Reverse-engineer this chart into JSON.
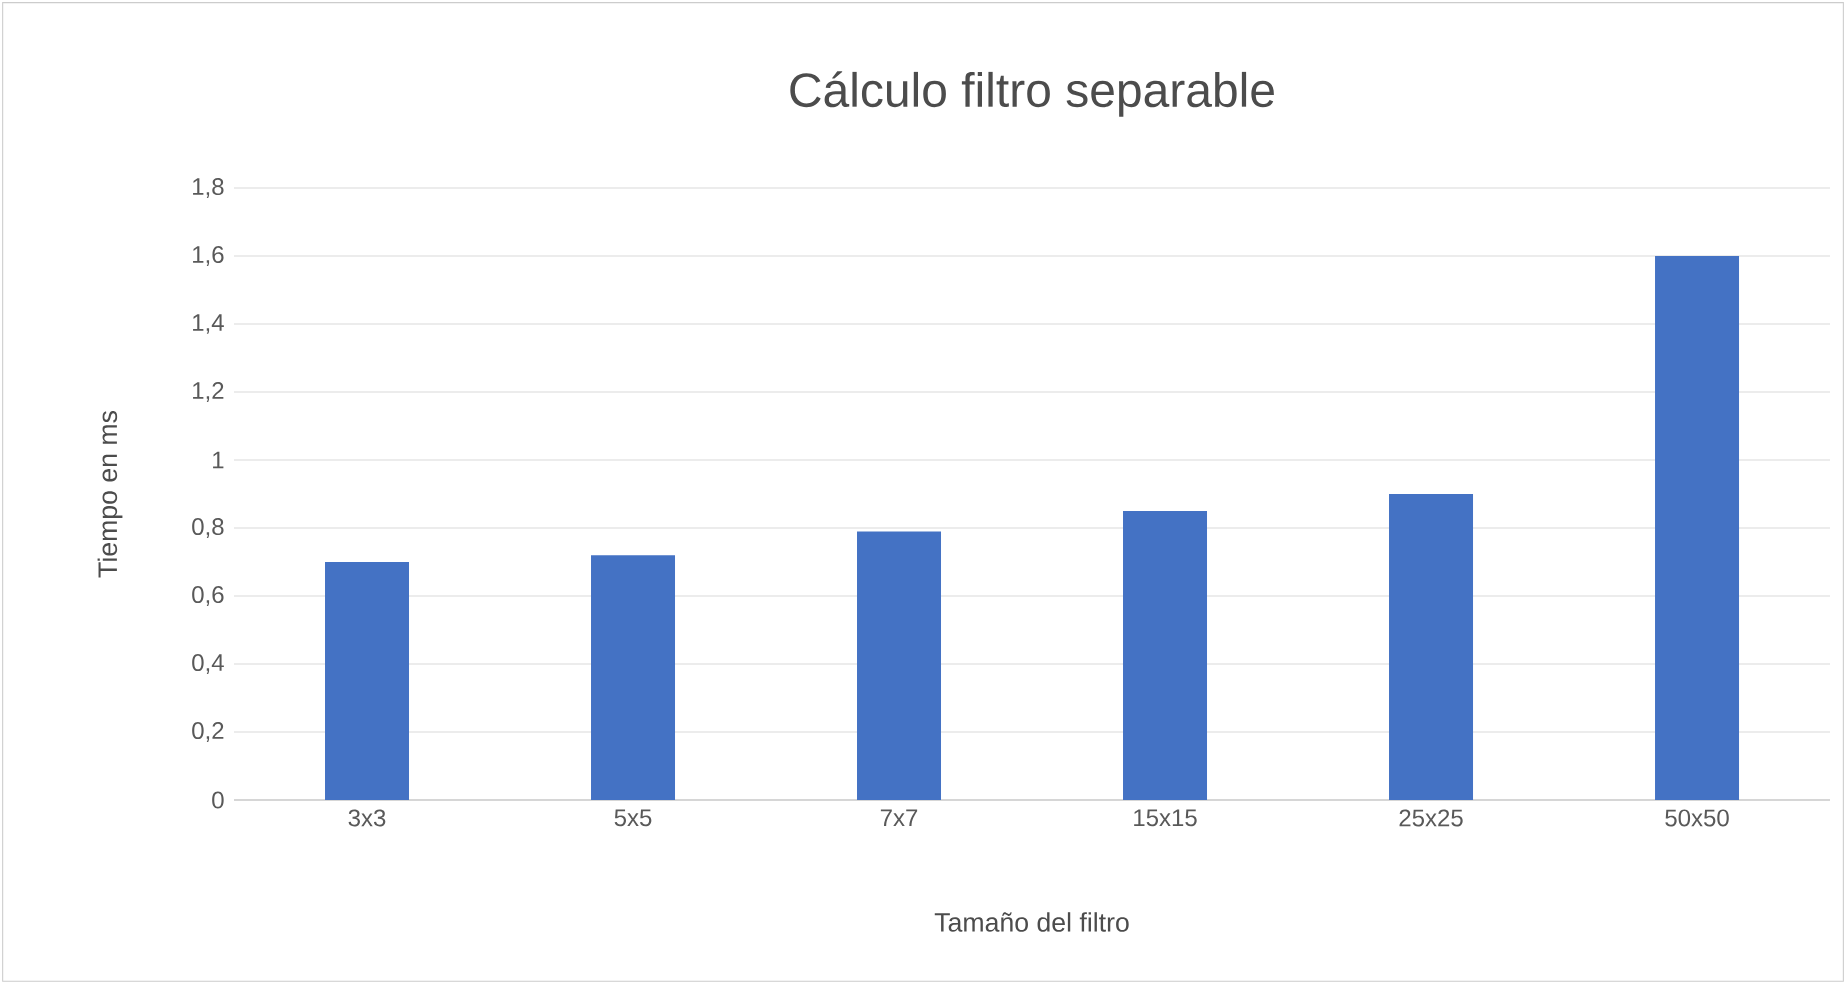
{
  "chart_data": {
    "type": "bar",
    "title": "Cálculo filtro separable",
    "xlabel": "Tamaño del filtro",
    "ylabel": "Tiempo en ms",
    "categories": [
      "3x3",
      "5x5",
      "7x7",
      "15x15",
      "25x25",
      "50x50"
    ],
    "values": [
      0.7,
      0.72,
      0.79,
      0.85,
      0.9,
      1.6
    ],
    "color": "#4472c4",
    "ylim": [
      0,
      1.8
    ],
    "yticks": [
      0,
      {
        "value": 0.2,
        "label": "0,2"
      },
      {
        "value": 0.4,
        "label": "0,4"
      },
      {
        "value": 0.6,
        "label": "0,6"
      },
      {
        "value": 0.8,
        "label": "0,8"
      },
      1,
      {
        "value": 1.2,
        "label": "1,2"
      },
      {
        "value": 1.4,
        "label": "1,4"
      },
      {
        "value": 1.6,
        "label": "1,6"
      },
      {
        "value": 1.8,
        "label": "1,8"
      }
    ],
    "grid": "y"
  }
}
